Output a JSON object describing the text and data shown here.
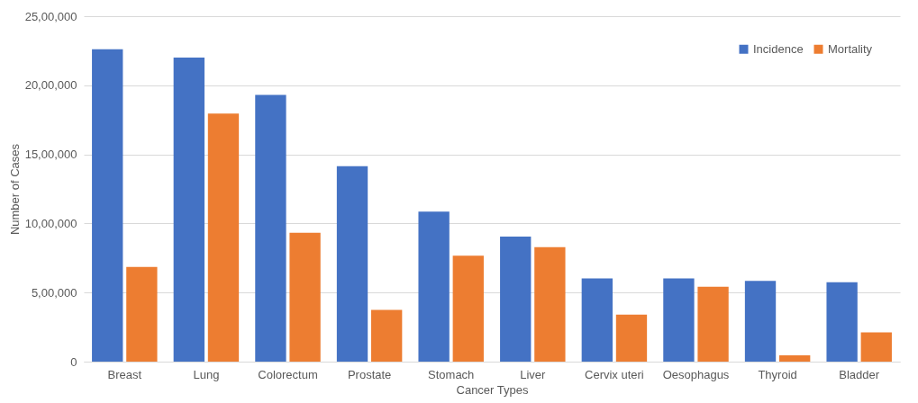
{
  "chart_data": {
    "type": "bar",
    "xlabel": "Cancer Types",
    "ylabel": "Number of Cases",
    "categories": [
      "Breast",
      "Lung",
      "Colorectum",
      "Prostate",
      "Stomach",
      "Liver",
      "Cervix uteri",
      "Oesophagus",
      "Thyroid",
      "Bladder"
    ],
    "series": [
      {
        "name": "Incidence",
        "color": "#4472c4",
        "values": [
          2260000,
          2200000,
          1930000,
          1415000,
          1085000,
          905000,
          602000,
          602000,
          585000,
          575000
        ]
      },
      {
        "name": "Mortality",
        "color": "#ed7d31",
        "values": [
          685000,
          1795000,
          932000,
          375000,
          767000,
          828000,
          340000,
          542000,
          45000,
          212000
        ]
      }
    ],
    "ylim": [
      0,
      2500000
    ],
    "yticks": [
      {
        "value": 0,
        "label": "0"
      },
      {
        "value": 500000,
        "label": "5,00,000"
      },
      {
        "value": 1000000,
        "label": "10,00,000"
      },
      {
        "value": 1500000,
        "label": "15,00,000"
      },
      {
        "value": 2000000,
        "label": "20,00,000"
      },
      {
        "value": 2500000,
        "label": "25,00,000"
      }
    ],
    "grid": "y",
    "legend": "top right"
  }
}
